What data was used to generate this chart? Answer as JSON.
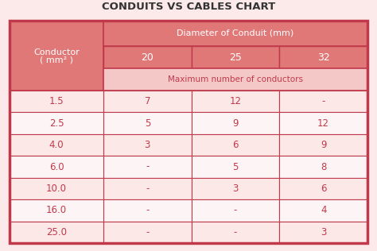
{
  "title": "CONDUITS VS CABLES CHART",
  "background_color": "#fceaea",
  "outer_border_color": "#c0394b",
  "header_bg_dark": "#e07878",
  "header_bg_medium": "#f0a0a0",
  "header_bg_light": "#f5c8c8",
  "row_colors": [
    "#fde8e8",
    "#fdf5f5"
  ],
  "col_header_line1": "Conductor",
  "col_header_line2": "( mm² )",
  "diameter_header": "Diameter of Conduit (mm)",
  "max_header": "Maximum number of conductors",
  "diameters": [
    "20",
    "25",
    "32"
  ],
  "conductors": [
    "1.5",
    "2.5",
    "4.0",
    "6.0",
    "10.0",
    "16.0",
    "25.0"
  ],
  "data": [
    [
      "7",
      "12",
      "-"
    ],
    [
      "5",
      "9",
      "12"
    ],
    [
      "3",
      "6",
      "9"
    ],
    [
      "-",
      "5",
      "8"
    ],
    [
      "-",
      "3",
      "6"
    ],
    [
      "-",
      "-",
      "4"
    ],
    [
      "-",
      "-",
      "3"
    ]
  ],
  "text_color_red": "#c0394b",
  "text_color_white": "#ffffff",
  "text_color_dark": "#555555"
}
